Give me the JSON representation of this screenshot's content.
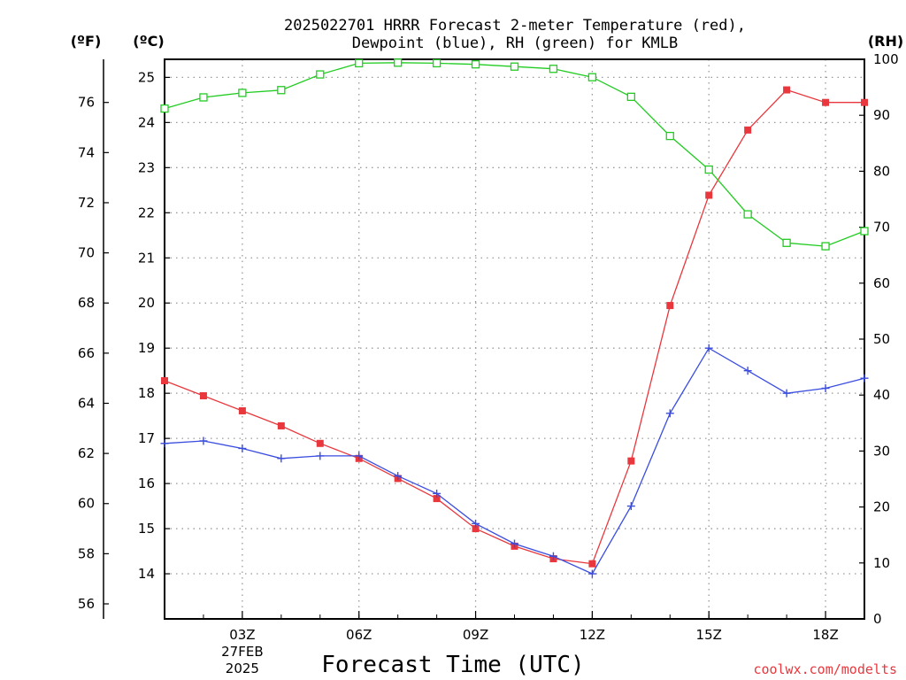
{
  "title_line1": "2025022701 HRRR Forecast 2-meter Temperature (red),",
  "title_line2": "Dewpoint (blue), RH (green) for KMLB",
  "credit": "coolwx.com/modelts",
  "colors": {
    "temperature": "#e8383d",
    "dewpoint": "#3a4de0",
    "rh": "#22cc22",
    "grid": "#9a9a9a"
  },
  "chart_data": {
    "type": "line",
    "xlabel": "Forecast Time (UTC)",
    "x_hours": [
      1,
      2,
      3,
      4,
      5,
      6,
      7,
      8,
      9,
      10,
      11,
      12,
      13,
      14,
      15,
      16,
      17,
      18,
      19
    ],
    "x_ticks": [
      {
        "hour": 3,
        "label": "03Z",
        "sub1": "27FEB",
        "sub2": "2025"
      },
      {
        "hour": 6,
        "label": "06Z"
      },
      {
        "hour": 9,
        "label": "09Z"
      },
      {
        "hour": 12,
        "label": "12Z"
      },
      {
        "hour": 15,
        "label": "15Z"
      },
      {
        "hour": 18,
        "label": "18Z"
      }
    ],
    "xlim": [
      1,
      19
    ],
    "axes": {
      "fahrenheit": {
        "unit_label": "(ºF)",
        "ticks": [
          56,
          58,
          60,
          62,
          64,
          66,
          68,
          70,
          72,
          74,
          76
        ]
      },
      "celsius": {
        "unit_label": "(ºC)",
        "ticks": [
          14,
          15,
          16,
          17,
          18,
          19,
          20,
          21,
          22,
          23,
          24,
          25
        ]
      },
      "rh": {
        "unit_label": "(RH)",
        "ticks": [
          0,
          10,
          20,
          30,
          40,
          50,
          60,
          70,
          80,
          90,
          100
        ],
        "ylim": [
          0,
          100
        ]
      }
    },
    "ylim_celsius": [
      13.0,
      25.4
    ],
    "grid": true,
    "series": [
      {
        "key": "temperature",
        "unit": "F",
        "values": [
          64.9,
          64.3,
          63.7,
          63.1,
          62.4,
          61.8,
          61.0,
          60.2,
          59.0,
          58.3,
          57.8,
          57.6,
          61.7,
          67.9,
          72.3,
          74.9,
          76.5,
          76.0,
          76.0
        ]
      },
      {
        "key": "dewpoint",
        "unit": "F",
        "values": [
          62.4,
          62.5,
          62.2,
          61.8,
          61.9,
          61.9,
          61.1,
          60.4,
          59.2,
          58.4,
          57.9,
          57.2,
          59.9,
          63.6,
          66.2,
          65.3,
          64.4,
          64.6,
          65.0
        ]
      },
      {
        "key": "rh",
        "unit": "%",
        "values": [
          91.2,
          93.2,
          94.0,
          94.5,
          97.3,
          99.3,
          99.4,
          99.3,
          99.1,
          98.7,
          98.3,
          96.8,
          93.3,
          86.3,
          80.3,
          72.3,
          67.2,
          66.6,
          69.3
        ]
      }
    ]
  }
}
